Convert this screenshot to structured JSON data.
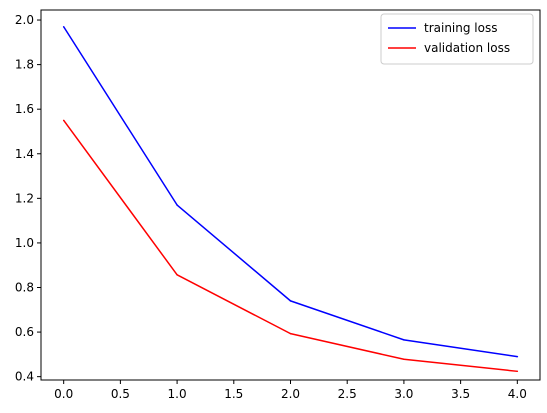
{
  "chart_data": {
    "type": "line",
    "title": "",
    "xlabel": "",
    "ylabel": "",
    "x": [
      0,
      1,
      2,
      3,
      4
    ],
    "xlim": [
      -0.2,
      4.2
    ],
    "ylim": [
      0.385,
      2.045
    ],
    "xticks": [
      "0.0",
      "0.5",
      "1.0",
      "1.5",
      "2.0",
      "2.5",
      "3.0",
      "3.5",
      "4.0"
    ],
    "yticks": [
      "0.4",
      "0.6",
      "0.8",
      "1.0",
      "1.2",
      "1.4",
      "1.6",
      "1.8",
      "2.0"
    ],
    "grid": false,
    "legend_position": "top-right",
    "series": [
      {
        "name": "training loss",
        "color": "#0000ff",
        "values": [
          1.97,
          1.17,
          0.74,
          0.565,
          0.49
        ]
      },
      {
        "name": "validation loss",
        "color": "#ff0000",
        "values": [
          1.55,
          0.857,
          0.593,
          0.478,
          0.424
        ]
      }
    ]
  }
}
